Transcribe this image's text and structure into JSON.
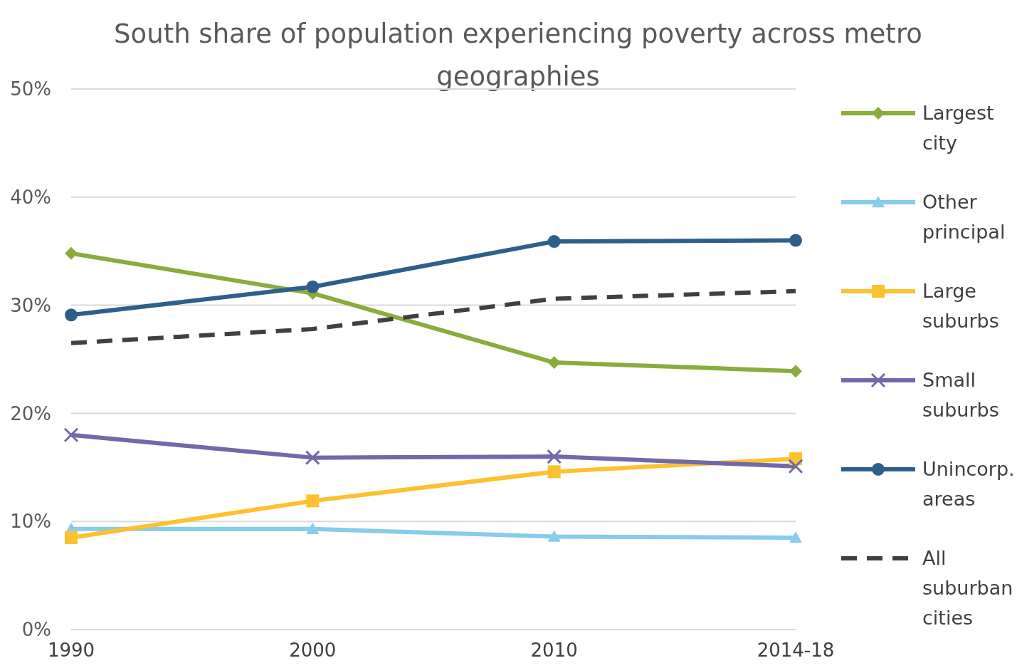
{
  "chart_data": {
    "type": "line",
    "title": "South share of population experiencing poverty across metro geographies",
    "categories": [
      "1990",
      "2000",
      "2010",
      "2014-18"
    ],
    "series": [
      {
        "name": "Largest city",
        "color": "#8aac3c",
        "marker": "diamond",
        "line_style": "solid",
        "values": [
          34.8,
          31.1,
          24.7,
          23.9
        ]
      },
      {
        "name": "Other principal",
        "color": "#87cce8",
        "marker": "triangle",
        "line_style": "solid",
        "values": [
          9.3,
          9.3,
          8.6,
          8.5
        ]
      },
      {
        "name": "Large suburbs",
        "color": "#fcc12f",
        "marker": "square",
        "line_style": "solid",
        "values": [
          8.5,
          11.9,
          14.6,
          15.8
        ]
      },
      {
        "name": "Small suburbs",
        "color": "#7268aa",
        "marker": "cross",
        "line_style": "solid",
        "values": [
          18.0,
          15.9,
          16.0,
          15.1
        ]
      },
      {
        "name": "Unincorp. areas",
        "color": "#2e5f8a",
        "marker": "circle",
        "line_style": "solid",
        "values": [
          29.1,
          31.7,
          35.9,
          36.0
        ]
      },
      {
        "name": "All suburban cities",
        "color": "#404040",
        "marker": "none",
        "line_style": "dashed",
        "values": [
          26.5,
          27.8,
          30.6,
          31.3
        ]
      }
    ],
    "ylim": [
      0,
      50
    ],
    "yticks": [
      {
        "value": 0,
        "label": "0%"
      },
      {
        "value": 10,
        "label": "10%"
      },
      {
        "value": 20,
        "label": "20%"
      },
      {
        "value": 30,
        "label": "30%"
      },
      {
        "value": 40,
        "label": "40%"
      },
      {
        "value": 50,
        "label": "50%"
      }
    ],
    "grid": "y",
    "legend": "right"
  }
}
